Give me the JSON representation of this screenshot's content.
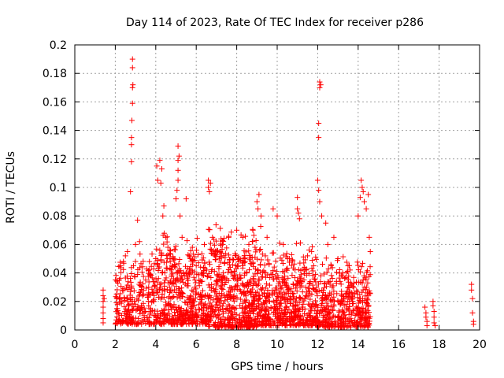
{
  "chart_data": {
    "type": "scatter",
    "title": "Day 114 of 2023, Rate Of TEC Index for receiver p286",
    "xlabel": "GPS time / hours",
    "ylabel": "ROTI / TECUs",
    "xlim": [
      0,
      20
    ],
    "ylim": [
      0,
      0.2
    ],
    "xticks": [
      "0",
      "2",
      "4",
      "6",
      "8",
      "10",
      "12",
      "14",
      "16",
      "18",
      "20"
    ],
    "yticks": [
      "0",
      "0.02",
      "0.04",
      "0.06",
      "0.08",
      "0.1",
      "0.12",
      "0.14",
      "0.16",
      "0.18",
      "0.2"
    ],
    "grid": true,
    "marker": "plus",
    "color": "#ff0000",
    "series": [
      {
        "points": [
          [
            1.4,
            0.028
          ],
          [
            1.4,
            0.024
          ],
          [
            1.4,
            0.02
          ],
          [
            1.4,
            0.016
          ],
          [
            1.4,
            0.012
          ],
          [
            1.4,
            0.008
          ],
          [
            1.4,
            0.005
          ],
          [
            1.45,
            0.022
          ],
          [
            2.1,
            0.015
          ],
          [
            2.15,
            0.012
          ],
          [
            2.2,
            0.035
          ],
          [
            2.25,
            0.045
          ],
          [
            2.3,
            0.02
          ],
          [
            2.35,
            0.028
          ],
          [
            2.4,
            0.048
          ],
          [
            2.5,
            0.052
          ],
          [
            2.55,
            0.03
          ],
          [
            2.6,
            0.055
          ],
          [
            2.75,
            0.097
          ],
          [
            2.8,
            0.118
          ],
          [
            2.8,
            0.13
          ],
          [
            2.8,
            0.135
          ],
          [
            2.82,
            0.147
          ],
          [
            2.85,
            0.159
          ],
          [
            2.85,
            0.17
          ],
          [
            2.87,
            0.172
          ],
          [
            2.85,
            0.184
          ],
          [
            2.85,
            0.19
          ],
          [
            2.9,
            0.045
          ],
          [
            3.0,
            0.06
          ],
          [
            3.1,
            0.077
          ],
          [
            3.2,
            0.062
          ],
          [
            3.3,
            0.03
          ],
          [
            3.5,
            0.035
          ],
          [
            3.7,
            0.025
          ],
          [
            4.0,
            0.05
          ],
          [
            4.05,
            0.115
          ],
          [
            4.1,
            0.105
          ],
          [
            4.2,
            0.119
          ],
          [
            4.25,
            0.103
          ],
          [
            4.3,
            0.113
          ],
          [
            4.35,
            0.08
          ],
          [
            4.4,
            0.087
          ],
          [
            4.5,
            0.065
          ],
          [
            4.6,
            0.058
          ],
          [
            4.7,
            0.05
          ],
          [
            4.8,
            0.045
          ],
          [
            5.0,
            0.092
          ],
          [
            5.05,
            0.098
          ],
          [
            5.1,
            0.105
          ],
          [
            5.1,
            0.112
          ],
          [
            5.1,
            0.119
          ],
          [
            5.15,
            0.122
          ],
          [
            5.1,
            0.129
          ],
          [
            5.2,
            0.08
          ],
          [
            5.3,
            0.065
          ],
          [
            5.5,
            0.092
          ],
          [
            5.7,
            0.05
          ],
          [
            6.0,
            0.045
          ],
          [
            6.4,
            0.06
          ],
          [
            6.6,
            0.105
          ],
          [
            6.6,
            0.1
          ],
          [
            6.65,
            0.097
          ],
          [
            6.7,
            0.103
          ],
          [
            6.8,
            0.065
          ],
          [
            7.0,
            0.055
          ],
          [
            7.3,
            0.06
          ],
          [
            7.6,
            0.065
          ],
          [
            8.0,
            0.07
          ],
          [
            8.3,
            0.065
          ],
          [
            8.6,
            0.06
          ],
          [
            8.8,
            0.07
          ],
          [
            9.0,
            0.09
          ],
          [
            9.05,
            0.085
          ],
          [
            9.1,
            0.095
          ],
          [
            9.2,
            0.08
          ],
          [
            9.5,
            0.065
          ],
          [
            9.8,
            0.085
          ],
          [
            10.0,
            0.08
          ],
          [
            10.3,
            0.06
          ],
          [
            10.6,
            0.05
          ],
          [
            11.0,
            0.093
          ],
          [
            11.0,
            0.085
          ],
          [
            11.05,
            0.082
          ],
          [
            11.1,
            0.078
          ],
          [
            11.15,
            0.061
          ],
          [
            11.5,
            0.052
          ],
          [
            11.8,
            0.045
          ],
          [
            12.0,
            0.105
          ],
          [
            12.05,
            0.098
          ],
          [
            12.05,
            0.135
          ],
          [
            12.05,
            0.145
          ],
          [
            12.1,
            0.17
          ],
          [
            12.1,
            0.174
          ],
          [
            12.15,
            0.172
          ],
          [
            12.1,
            0.09
          ],
          [
            12.2,
            0.08
          ],
          [
            12.4,
            0.075
          ],
          [
            12.5,
            0.06
          ],
          [
            12.8,
            0.065
          ],
          [
            13.0,
            0.05
          ],
          [
            13.5,
            0.045
          ],
          [
            14.0,
            0.08
          ],
          [
            14.1,
            0.093
          ],
          [
            14.15,
            0.105
          ],
          [
            14.2,
            0.1
          ],
          [
            14.25,
            0.097
          ],
          [
            14.3,
            0.09
          ],
          [
            14.4,
            0.085
          ],
          [
            14.5,
            0.095
          ],
          [
            14.55,
            0.065
          ],
          [
            14.6,
            0.055
          ],
          [
            17.3,
            0.016
          ],
          [
            17.35,
            0.012
          ],
          [
            17.35,
            0.009
          ],
          [
            17.4,
            0.006
          ],
          [
            17.4,
            0.003
          ],
          [
            17.7,
            0.02
          ],
          [
            17.7,
            0.017
          ],
          [
            17.75,
            0.013
          ],
          [
            17.75,
            0.009
          ],
          [
            17.75,
            0.005
          ],
          [
            17.8,
            0.003
          ],
          [
            19.6,
            0.032
          ],
          [
            19.6,
            0.028
          ],
          [
            19.65,
            0.022
          ],
          [
            19.65,
            0.012
          ],
          [
            19.7,
            0.006
          ],
          [
            19.7,
            0.004
          ]
        ]
      }
    ],
    "dense_clusters": [
      {
        "x_start": 2.0,
        "x_end": 4.0,
        "count": 260,
        "y_low": 0.004,
        "y_high": 0.035
      },
      {
        "x_start": 4.0,
        "x_end": 6.6,
        "count": 480,
        "y_low": 0.004,
        "y_high": 0.045
      },
      {
        "x_start": 6.6,
        "x_end": 9.2,
        "count": 560,
        "y_low": 0.002,
        "y_high": 0.05
      },
      {
        "x_start": 9.2,
        "x_end": 12.0,
        "count": 520,
        "y_low": 0.003,
        "y_high": 0.04
      },
      {
        "x_start": 12.0,
        "x_end": 14.6,
        "count": 420,
        "y_low": 0.002,
        "y_high": 0.035
      }
    ]
  }
}
